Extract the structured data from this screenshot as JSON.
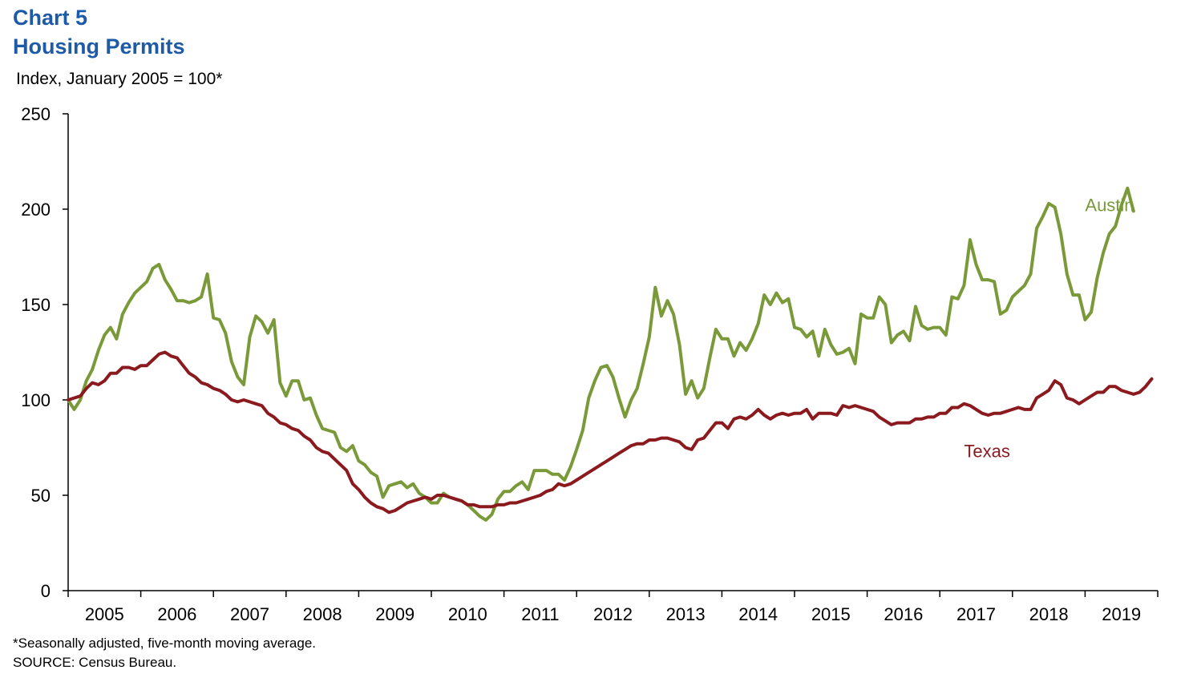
{
  "header": {
    "chart_number": "Chart 5",
    "title": "Housing Permits",
    "units": "Index, January 2005 = 100*"
  },
  "footer": {
    "note": "*Seasonally adjusted, five-month moving average.",
    "source": "SOURCE: Census Bureau."
  },
  "chart_data": {
    "type": "line",
    "title": "Housing Permits",
    "ylabel": "Index, January 2005 = 100*",
    "xlabel": "",
    "ylim": [
      0,
      250
    ],
    "yticks": [
      0,
      50,
      100,
      150,
      200,
      250
    ],
    "ytick_labels": [
      "0",
      "50",
      "100",
      "150",
      "200",
      "250"
    ],
    "x_start": "2005-01",
    "x_frequency": "monthly",
    "xlim_months": [
      0,
      180
    ],
    "year_labels": [
      "2005",
      "2006",
      "2007",
      "2008",
      "2009",
      "2010",
      "2011",
      "2012",
      "2013",
      "2014",
      "2015",
      "2016",
      "2017",
      "2018",
      "2019"
    ],
    "grid": false,
    "legend": "inline labels",
    "series": [
      {
        "name": "Austin",
        "color": "#7a9a3a",
        "label_anchor_month": 168,
        "label_anchor_value": 199,
        "values": [
          100,
          95,
          100,
          110,
          116,
          126,
          134,
          138,
          132,
          145,
          151,
          156,
          159,
          162,
          169,
          171,
          163,
          158,
          152,
          152,
          151,
          152,
          154,
          166,
          143,
          142,
          135,
          120,
          112,
          108,
          133,
          144,
          141,
          135,
          142,
          109,
          102,
          110,
          110,
          100,
          101,
          92,
          85,
          84,
          83,
          75,
          73,
          76,
          68,
          66,
          62,
          60,
          49,
          55,
          56,
          57,
          54,
          56,
          51,
          49,
          46,
          46,
          51,
          49,
          48,
          47,
          45,
          42,
          39,
          37,
          40,
          48,
          52,
          52,
          55,
          57,
          53,
          63,
          63,
          63,
          61,
          61,
          58,
          65,
          74,
          84,
          101,
          110,
          117,
          118,
          112,
          101,
          91,
          100,
          106,
          119,
          133,
          159,
          144,
          152,
          145,
          129,
          103,
          110,
          101,
          106,
          122,
          137,
          132,
          132,
          123,
          130,
          126,
          132,
          140,
          155,
          150,
          156,
          151,
          153,
          138,
          137,
          133,
          136,
          123,
          137,
          129,
          124,
          125,
          127,
          119,
          145,
          143,
          143,
          154,
          150,
          130,
          134,
          136,
          131,
          149,
          139,
          137,
          138,
          138,
          134,
          154,
          153,
          160,
          184,
          171,
          163,
          163,
          162,
          145,
          147,
          154,
          157,
          160,
          166,
          190,
          196,
          203,
          201,
          187,
          166,
          155,
          155,
          142,
          146,
          164,
          177,
          187,
          191,
          202,
          211,
          199
        ]
      },
      {
        "name": "Texas",
        "color": "#8b1a1f",
        "label_anchor_month": 148,
        "label_anchor_value": 70,
        "values": [
          100,
          101,
          102,
          106,
          109,
          108,
          110,
          114,
          114,
          117,
          117,
          116,
          118,
          118,
          121,
          124,
          125,
          123,
          122,
          118,
          114,
          112,
          109,
          108,
          106,
          105,
          103,
          100,
          99,
          100,
          99,
          98,
          97,
          93,
          91,
          88,
          87,
          85,
          84,
          81,
          79,
          75,
          73,
          72,
          69,
          66,
          63,
          56,
          53,
          49,
          46,
          44,
          43,
          41,
          42,
          44,
          46,
          47,
          48,
          49,
          48,
          50,
          50,
          49,
          48,
          47,
          45,
          45,
          44,
          44,
          44,
          45,
          45,
          46,
          46,
          47,
          48,
          49,
          50,
          52,
          53,
          56,
          55,
          56,
          58,
          60,
          62,
          64,
          66,
          68,
          70,
          72,
          74,
          76,
          77,
          77,
          79,
          79,
          80,
          80,
          79,
          78,
          75,
          74,
          79,
          80,
          84,
          88,
          88,
          85,
          90,
          91,
          90,
          92,
          95,
          92,
          90,
          92,
          93,
          92,
          93,
          93,
          95,
          90,
          93,
          93,
          93,
          92,
          97,
          96,
          97,
          96,
          95,
          94,
          91,
          89,
          87,
          88,
          88,
          88,
          90,
          90,
          91,
          91,
          93,
          93,
          96,
          96,
          98,
          97,
          95,
          93,
          92,
          93,
          93,
          94,
          95,
          96,
          95,
          95,
          101,
          103,
          105,
          110,
          108,
          101,
          100,
          98,
          100,
          102,
          104,
          104,
          107,
          107,
          105,
          104,
          103,
          104,
          107,
          111
        ]
      }
    ]
  }
}
